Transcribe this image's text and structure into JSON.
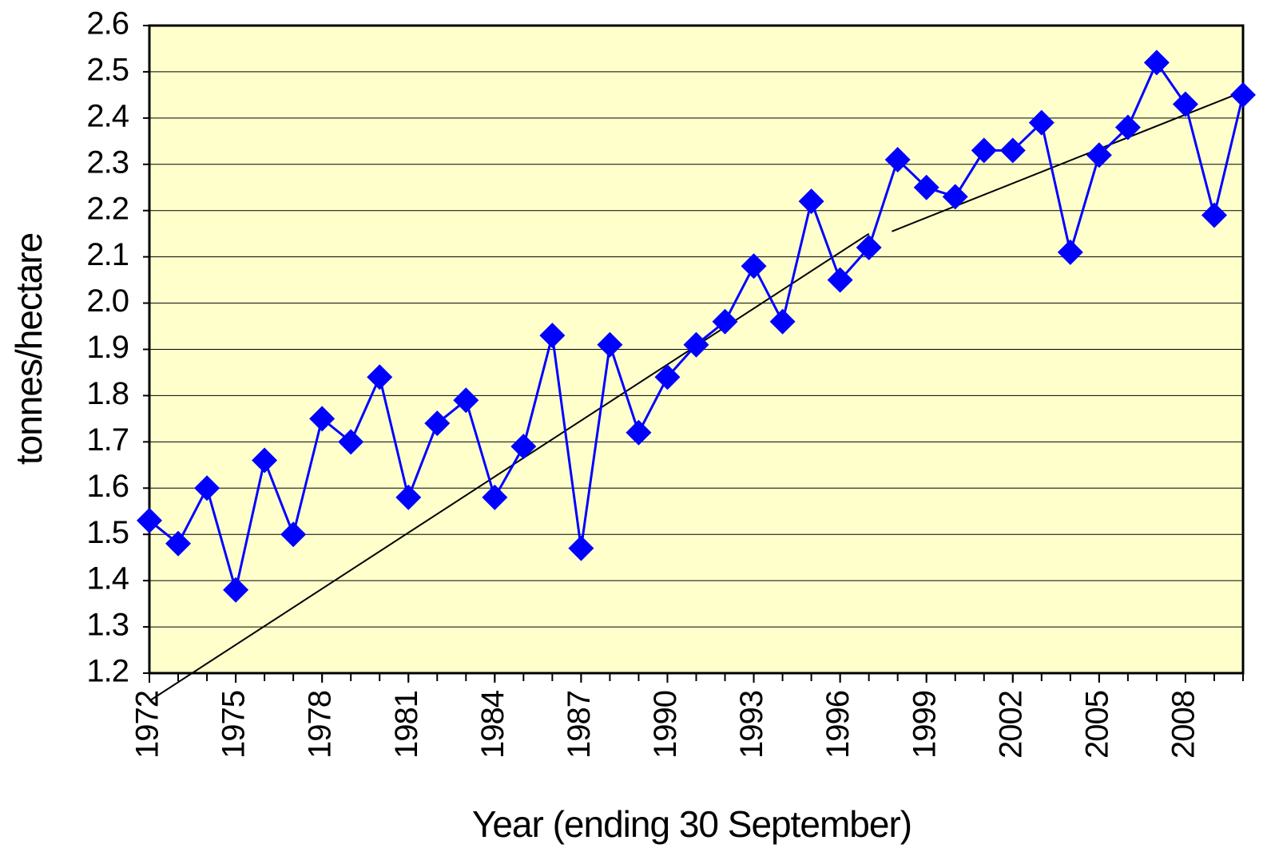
{
  "chart_data": {
    "type": "line",
    "x_label": "Year (ending 30 September)",
    "y_label": "tonnes/hectare",
    "x": [
      1972,
      1973,
      1974,
      1975,
      1976,
      1977,
      1978,
      1979,
      1980,
      1981,
      1982,
      1983,
      1984,
      1985,
      1986,
      1987,
      1988,
      1989,
      1990,
      1991,
      1992,
      1993,
      1994,
      1995,
      1996,
      1997,
      1998,
      1999,
      2000,
      2001,
      2002,
      2003,
      2004,
      2005,
      2006,
      2007,
      2008,
      2009,
      2010
    ],
    "series": [
      {
        "color": "#0000ff",
        "values": [
          1.53,
          1.48,
          1.6,
          1.38,
          1.66,
          1.5,
          1.75,
          1.7,
          1.84,
          1.58,
          1.74,
          1.79,
          1.58,
          1.69,
          1.93,
          1.47,
          1.91,
          1.72,
          1.84,
          1.91,
          1.96,
          2.08,
          1.96,
          2.22,
          2.05,
          2.12,
          2.31,
          2.25,
          2.23,
          2.33,
          2.33,
          2.39,
          2.11,
          2.32,
          2.38,
          2.52,
          2.43,
          2.19,
          2.45
        ]
      }
    ],
    "trend_lines": [
      {
        "color": "#000000",
        "x": [
          1972,
          1997
        ],
        "values": [
          1.14,
          2.15
        ]
      },
      {
        "color": "#000000",
        "x": [
          1997.8,
          2010
        ],
        "values": [
          2.155,
          2.457
        ]
      }
    ],
    "xlim": [
      1972,
      2010
    ],
    "xticks": [
      1972,
      1975,
      1978,
      1981,
      1984,
      1987,
      1990,
      1993,
      1996,
      1999,
      2002,
      2005,
      2008
    ],
    "ylim": [
      1.2,
      2.6
    ],
    "yticks": [
      1.2,
      1.3,
      1.4,
      1.5,
      1.6,
      1.7,
      1.8,
      1.9,
      {
        "value": 2,
        "label": "2.0"
      },
      2.1,
      2.2,
      2.3,
      2.4,
      2.5,
      2.6
    ],
    "grid": true,
    "plot_background": "#ffffcc"
  }
}
